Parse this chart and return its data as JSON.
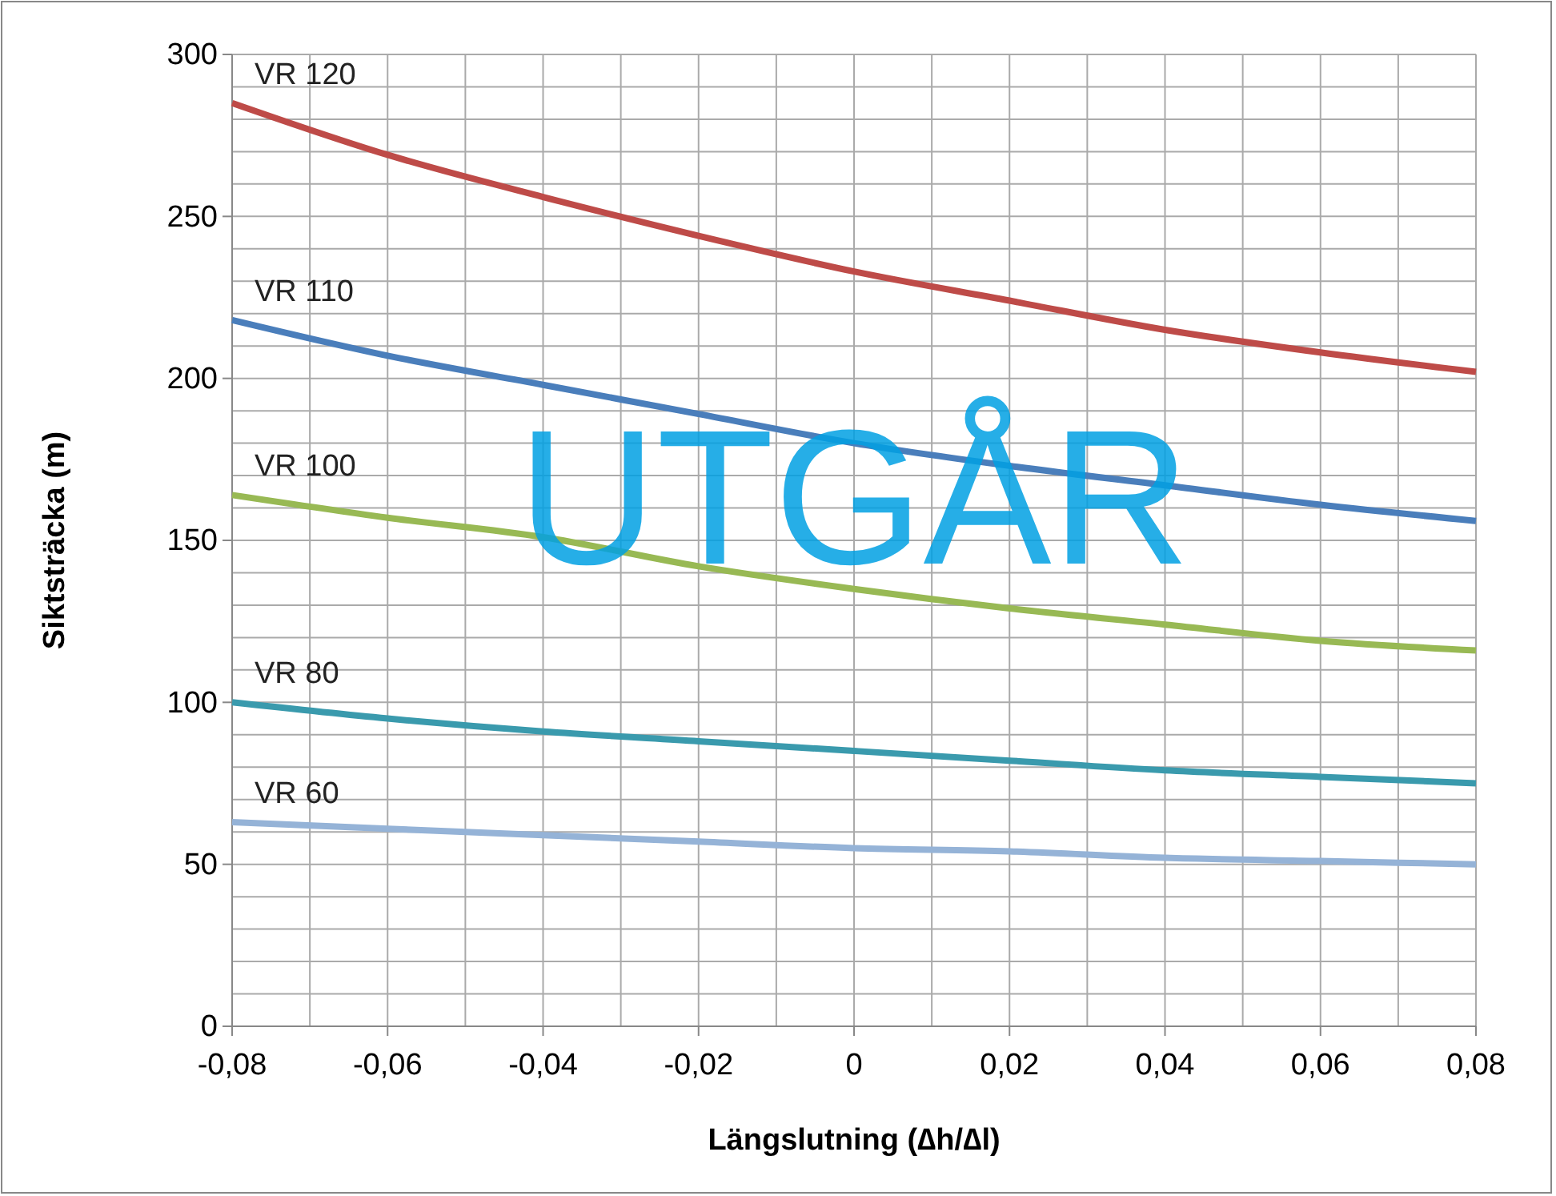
{
  "chart_data": {
    "type": "line",
    "xlabel": "Längslutning (∆h/∆l)",
    "ylabel": "Siktsträcka (m)",
    "x": [
      -0.08,
      -0.06,
      -0.04,
      -0.02,
      0,
      0.02,
      0.04,
      0.06,
      0.08
    ],
    "series": [
      {
        "name": "VR 120",
        "color": "#be4b48",
        "values": [
          285,
          269,
          256,
          244,
          233,
          224,
          215,
          208,
          202
        ]
      },
      {
        "name": "VR 110",
        "color": "#4a7ebb",
        "values": [
          218,
          207,
          198,
          189,
          180,
          173,
          167,
          161,
          156
        ]
      },
      {
        "name": "VR 100",
        "color": "#98b954",
        "values": [
          164,
          157,
          151,
          142,
          135,
          129,
          124,
          119,
          116
        ]
      },
      {
        "name": "VR 80",
        "color": "#3a9aad",
        "values": [
          100,
          95,
          91,
          88,
          85,
          82,
          79,
          77,
          75
        ]
      },
      {
        "name": "VR 60",
        "color": "#95b3d7",
        "values": [
          63,
          61,
          59,
          57,
          55,
          54,
          52,
          51,
          50
        ]
      }
    ],
    "xlim": [
      -0.08,
      0.08
    ],
    "ylim": [
      0,
      300
    ],
    "xticks": [
      {
        "value": -0.08,
        "label": "-0,08"
      },
      {
        "value": -0.06,
        "label": "-0,06"
      },
      {
        "value": -0.04,
        "label": "-0,04"
      },
      {
        "value": -0.02,
        "label": "-0,02"
      },
      0,
      {
        "value": 0.02,
        "label": "0,02"
      },
      {
        "value": 0.04,
        "label": "0,04"
      },
      {
        "value": 0.06,
        "label": "0,06"
      },
      {
        "value": 0.08,
        "label": "0,08"
      }
    ],
    "yticks": [
      0,
      50,
      100,
      150,
      200,
      250,
      300
    ],
    "grid": true,
    "marker": "none",
    "line_style": "solid",
    "annotations": [
      "UTGÅR"
    ]
  }
}
